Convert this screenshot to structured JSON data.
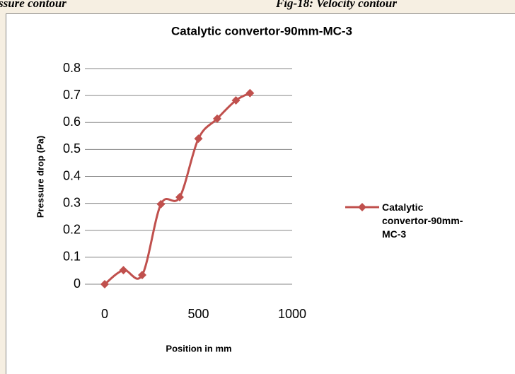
{
  "captions": [
    "ssure contour",
    "Fig-18: Velocity contour"
  ],
  "chart_data": {
    "type": "line",
    "title": "Catalytic convertor-90mm-MC-3",
    "x_label": "Position in mm",
    "y_label": "Pressure drop  (Pa)",
    "x": [
      0,
      100,
      200,
      300,
      400,
      500,
      600,
      700,
      775
    ],
    "series": [
      {
        "name": "Catalytic convertor-90mm-MC-3",
        "color": "#c0504d",
        "values": [
          0,
          0.052,
          0.034,
          0.297,
          0.323,
          0.54,
          0.614,
          0.682,
          0.709
        ]
      }
    ],
    "xlim": [
      0,
      1000
    ],
    "xticks": [
      0,
      500,
      1000
    ],
    "ylim": [
      0,
      0.8
    ],
    "yticks": [
      0,
      0.1,
      0.2,
      0.3,
      0.4,
      0.5,
      0.6,
      0.7,
      0.8
    ],
    "grid": true,
    "legend": "right"
  }
}
